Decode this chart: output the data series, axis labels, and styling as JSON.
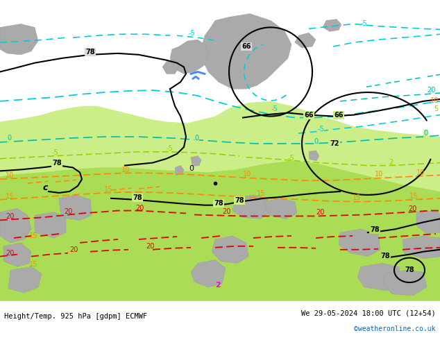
{
  "title_left": "Height/Temp. 925 hPa [gdpm] ECMWF",
  "title_right": "We 29-05-2024 18:00 UTC (12+54)",
  "credit": "©weatheronline.co.uk",
  "credit_color": "#0066cc",
  "fig_width": 6.34,
  "fig_height": 4.9,
  "dpi": 100,
  "bg_grey": "#d8d8d8",
  "bg_light_green": "#ccee88",
  "bg_green": "#aadd55",
  "sea_grey": "#c8c8c8",
  "land_grey": "#aaaaaa",
  "black": "#000000",
  "cyan": "#00ccdd",
  "teal": "#00bbaa",
  "lime": "#99cc00",
  "orange": "#ff8800",
  "red": "#dd0000",
  "magenta": "#ff00cc",
  "blue": "#4488ff",
  "label_fs": 7,
  "footer_fs": 7.5
}
